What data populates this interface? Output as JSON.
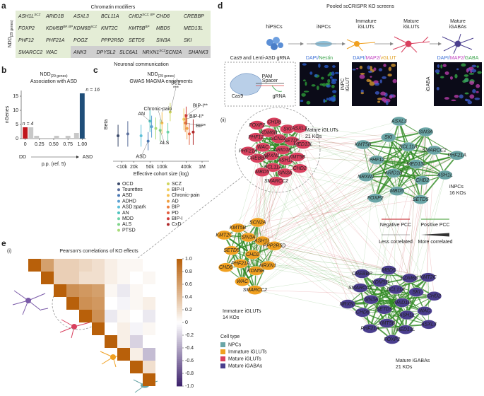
{
  "panel_letters": [
    "a",
    "b",
    "c",
    "d",
    "e"
  ],
  "panel_a": {
    "ylabel": {
      "main": "NDD",
      "sub": "(29 genes)"
    },
    "group1": "Chromatin modifiers",
    "group2": "Neuronal communication",
    "rows": [
      [
        {
          "name": "ASH1L",
          "sup": "SCZ"
        },
        {
          "name": "ARID1B"
        },
        {
          "name": "ASXL3"
        },
        {
          "name": "BCL11A"
        },
        {
          "name": "CHD2",
          "sup": "SCZ, BP"
        },
        {
          "name": "CHD8"
        },
        {
          "name": "CREBBP"
        }
      ],
      [
        {
          "name": "FOXP2"
        },
        {
          "name": "KDM5B",
          "sup": "BP, BP"
        },
        {
          "name": "KDM6B",
          "sup": "SCZ"
        },
        {
          "name": "KMT2C"
        },
        {
          "name": "KMT5B",
          "sup": "BP"
        },
        {
          "name": "MBD5"
        },
        {
          "name": "MED13L"
        }
      ],
      [
        {
          "name": "PHF12"
        },
        {
          "name": "PHF21A"
        },
        {
          "name": "POGZ"
        },
        {
          "name": "PPP2R5D"
        },
        {
          "name": "SETD5"
        },
        {
          "name": "SIN3A"
        },
        {
          "name": "SKI"
        }
      ],
      [
        {
          "name": "SMARCC2"
        },
        {
          "name": "WAC"
        }
      ]
    ],
    "neuronal": [
      {
        "name": "ANK3"
      },
      {
        "name": "DPYSL2"
      },
      {
        "name": "SLC6A1"
      },
      {
        "name": "NRXN1",
        "sup": "SCZ"
      },
      {
        "name": "SCN2A"
      },
      {
        "name": "SHANK3"
      }
    ]
  },
  "chart_data": [
    {
      "type": "bar",
      "title": {
        "main": "NDD",
        "sub": "(29 genes)"
      },
      "subtitle": "Association with ASD",
      "ylabel": "nGenes",
      "xlabel": "p.p. (ref. 5)",
      "left_label": "DD",
      "right_label": "ASD",
      "x": [
        0,
        0.1,
        0.2,
        0.55,
        0.75,
        0.9,
        1.0
      ],
      "values": [
        4,
        4,
        1,
        1,
        1,
        2,
        16
      ],
      "value_labels": [
        "n = 4",
        null,
        null,
        null,
        null,
        null,
        "n = 16"
      ],
      "colors": [
        "#c0161d",
        "#c8c8c8",
        "#c8c8c8",
        "#c8c8c8",
        "#c8c8c8",
        "#c8c8c8",
        "#1f4e79"
      ],
      "xlim": [
        -0.07,
        1.07
      ],
      "xticks": [
        0,
        0.25,
        {
          "value": 0.5,
          "label": "0.50"
        },
        {
          "value": 0.75,
          "label": "0.75"
        },
        {
          "value": 1,
          "label": "1.00"
        }
      ],
      "ylim": [
        0,
        17
      ],
      "yticks": [
        0,
        5,
        10,
        15
      ]
    },
    {
      "type": "scatter",
      "title": {
        "main": "NDD",
        "sub": "(29 genes)"
      },
      "subtitle": "GWAS MAGMA enrichments",
      "ylabel": "Beta",
      "xlabel": "Effective cohort size (log)",
      "log_x": true,
      "xlim": [
        6000,
        1500000
      ],
      "xticks": [
        {
          "value": 10000,
          "label": "<10k"
        },
        {
          "value": 20000,
          "label": "20k"
        },
        {
          "value": 50000,
          "label": "50k"
        },
        {
          "value": 100000,
          "label": "100k"
        },
        {
          "value": 400000,
          "label": "400k"
        },
        {
          "value": 1000000,
          "label": "1M"
        }
      ],
      "ylim": [
        -0.6,
        1.4
      ],
      "series": [
        {
          "name": "OCD",
          "color": "#3b4a6b",
          "x": [
            8000
          ],
          "values": [
            0.1
          ],
          "errors": [
            0.3
          ]
        },
        {
          "name": "Tourettes",
          "color": "#5b6f9c",
          "x": [
            14000
          ],
          "values": [
            0.15
          ],
          "errors": [
            0.35
          ]
        },
        {
          "name": "ASD",
          "color": "#4a78b5",
          "x": [
            45000
          ],
          "values": [
            -0.05
          ],
          "errors": [
            0.25
          ],
          "point_label": [
            "ASD"
          ]
        },
        {
          "name": "ADHD",
          "color": "#5aa0d2",
          "x": [
            55000
          ],
          "values": [
            0.35
          ],
          "errors": [
            0.3
          ]
        },
        {
          "name": "ASD:spark",
          "color": "#5cc0d8",
          "x": [
            30000
          ],
          "values": [
            0.1
          ],
          "errors": [
            0.3
          ]
        },
        {
          "name": "AN",
          "color": "#4fc3c0",
          "x": [
            50000
          ],
          "values": [
            0.5
          ],
          "errors": [
            0.3
          ],
          "point_label": [
            "AN"
          ]
        },
        {
          "name": "MDD",
          "color": "#6dd3a8",
          "x": [
            140000
          ],
          "values": [
            0.2
          ],
          "errors": [
            0.25
          ]
        },
        {
          "name": "ALS",
          "color": "#7fd48a",
          "x": [
            90000
          ],
          "values": [
            0.25
          ],
          "errors": [
            0.3
          ],
          "point_label": [
            "ALS"
          ]
        },
        {
          "name": "PTSD",
          "color": "#a8dc7a",
          "x": [
            70000
          ],
          "values": [
            0.3
          ],
          "errors": [
            0.3
          ]
        },
        {
          "name": "SCZ",
          "color": "#cfd65e",
          "x": [
            160000
          ],
          "values": [
            0.75
          ],
          "errors": [
            0.25
          ],
          "point_label": [
            "SCZ",
            "***"
          ]
        },
        {
          "name": "BIP-II",
          "color": "#f0d060",
          "x": [
            350000
          ],
          "values": [
            0.55
          ],
          "errors": [
            0.3
          ],
          "point_label": [
            "BIP-II*"
          ]
        },
        {
          "name": "Chronic-pain",
          "color": "#f5c050",
          "x": [
            100000
          ],
          "values": [
            0.45
          ],
          "errors": [
            0.3
          ],
          "point_label": [
            "Chronic-pain"
          ]
        },
        {
          "name": "AD",
          "color": "#f0a040",
          "x": [
            420000
          ],
          "values": [
            0.3
          ],
          "errors": [
            0.3
          ]
        },
        {
          "name": "BIP",
          "color": "#ec8040",
          "x": [
            380000
          ],
          "values": [
            0.45
          ],
          "errors": [
            0.25
          ],
          "point_label": [
            "BIP*"
          ]
        },
        {
          "name": "PD",
          "color": "#e36040",
          "x": [
            480000
          ],
          "values": [
            0.15
          ],
          "errors": [
            0.3
          ]
        },
        {
          "name": "BIP-I",
          "color": "#d03a3a",
          "x": [
            400000
          ],
          "values": [
            0.65
          ],
          "errors": [
            0.25
          ],
          "point_label": [
            "BIP-I**"
          ]
        },
        {
          "name": "CxD",
          "color": "#b0282a",
          "x": [
            600000
          ],
          "values": [
            0.2
          ],
          "errors": [
            0.35
          ]
        }
      ]
    }
  ],
  "panel_d": {
    "title": "Pooled scCRISPR KO screens",
    "stages": [
      [
        "hiPSCs"
      ],
      [
        "iNPCs"
      ],
      [
        "Immature",
        "iGLUTs"
      ],
      [
        "Mature",
        "iGLUTs"
      ],
      [
        "Mature",
        "iGABAs"
      ]
    ],
    "construct_title": "Cas9 and Lenti-ASD gRNA",
    "construct_labels": [
      "PAM",
      "Spacer",
      "Cas9",
      "gRNA"
    ],
    "images": [
      {
        "side_label": "iNPC",
        "header": [
          {
            "text": "DAPI/",
            "color": "#3b6fd6"
          },
          {
            "text": "Nestin",
            "color": "#3aa34a"
          }
        ]
      },
      {
        "side_label": "iGLUT",
        "header": [
          {
            "text": "DAPI/",
            "color": "#3b6fd6"
          },
          {
            "text": "MAP2/",
            "color": "#c040c0"
          },
          {
            "text": "vGLUT",
            "color": "#e0a020"
          }
        ]
      },
      {
        "side_label": "iGABA",
        "header": [
          {
            "text": "DAPI/",
            "color": "#3b6fd6"
          },
          {
            "text": "MAP2/",
            "color": "#c040c0"
          },
          {
            "text": "GABA",
            "color": "#3aa34a"
          }
        ]
      }
    ],
    "network_label": "(ii)",
    "clusters": [
      {
        "name": "Mature iGLUTs",
        "count": "21 KOs",
        "color": "#d9405e",
        "nodes": [
          "ARID1B",
          "NRXN1",
          "SCN2A",
          "ASH1L",
          "WAC",
          "SETD5",
          "BCL11A",
          "KDM6B",
          "KMT5B",
          "CREBBP",
          "SKI",
          "SIN3A",
          "PHF12",
          "MED13L",
          "MBD5",
          "CHD8",
          "CHD2",
          "PHF21A",
          "ASXL3",
          "SMARCC2",
          "FOXP2"
        ]
      },
      {
        "name": "iNPCs",
        "count": "16 KOs",
        "color": "#6aa5a6",
        "nodes": [
          "MED13L",
          "ARID1B",
          "BCL11A",
          "CHD2",
          "PHF12",
          "SMARCC2",
          "MBD5",
          "SKI",
          "ASH1L",
          "NRXN1",
          "SIN3A",
          "SETD5",
          "KMT5B",
          "PHF21A",
          "FOXP2",
          "ASXL3"
        ]
      },
      {
        "name": "Immature iGLUTs",
        "count": "14 KOs",
        "color": "#f0a020",
        "nodes": [
          "CHD2",
          "PHF21A",
          "SIN3A",
          "KDM5B",
          "SETD5",
          "ASH1L",
          "WAC",
          "KMT5B",
          "NRXN1",
          "CHD8",
          "SCN2A",
          "SMARCC2",
          "KMT2C",
          "PPP2R5D"
        ]
      },
      {
        "name": "Mature iGABAs",
        "count": "21 KOs",
        "color": "#4a3e8e",
        "nodes": [
          "ARID1B",
          "SETD5",
          "BCL11A",
          "ASH1L",
          "SIN3A",
          "SKI",
          "KMT5B",
          "KDM5B",
          "WAC",
          "CHD8",
          "KDM6B",
          "MED13L",
          "SMARCC2",
          "CHD2",
          "PHF21A",
          "MBD5",
          "ASXL3",
          "NRXN1",
          "KMT2C",
          "FOXP2",
          "CREBBP"
        ]
      }
    ],
    "edge_legend": {
      "negative": "Negative PCC",
      "positive": "Positive PCC",
      "low": "Less correlated",
      "high": "More correlated",
      "negative_color": "#c0161d",
      "positive_color": "#3a9a2a"
    },
    "cell_type_legend": {
      "title": "Cell type",
      "entries": [
        {
          "name": "NPCs",
          "color": "#6aa5a6"
        },
        {
          "name": "Immature iGLUTs",
          "color": "#f0a020"
        },
        {
          "name": "Mature iGLUTs",
          "color": "#d9405e"
        },
        {
          "name": "Mature iGABAs",
          "color": "#4a3e8e"
        }
      ]
    }
  },
  "panel_e": {
    "label": "(i)",
    "title": "Pearson's correlations of KO effects",
    "matrix_upper": [
      [
        1,
        0.6,
        0.3,
        0.3,
        0.25,
        0.2,
        0.1,
        0.05,
        0.05,
        0
      ],
      [
        1,
        0.3,
        0.3,
        0.2,
        0.2,
        0.1,
        0.05,
        0,
        0.05
      ],
      [
        1,
        0.7,
        0.65,
        0.6,
        0.05,
        -0.1,
        0.05,
        0
      ],
      [
        1,
        0.7,
        0.65,
        0,
        -0.05,
        0.05,
        0.1
      ],
      [
        1,
        0.7,
        -0.1,
        0.05,
        0,
        -0.1
      ],
      [
        1,
        0,
        0.1,
        -0.05,
        0.05
      ],
      [
        1,
        0.1,
        -0.2,
        0
      ],
      [
        1,
        0.1,
        -0.3
      ],
      [
        1,
        0.2
      ],
      [
        1
      ]
    ],
    "colorbar": {
      "lim": [
        -1,
        1
      ],
      "colors": [
        "#3b1f6b",
        "#ffffff",
        "#b8600a"
      ],
      "ticks": [
        {
          "value": 1,
          "label": "1.0"
        },
        0.8,
        0.6,
        0.4,
        0.2,
        0,
        -0.2,
        -0.4,
        -0.6,
        -0.8,
        {
          "value": -1,
          "label": "-1.0"
        }
      ]
    }
  }
}
